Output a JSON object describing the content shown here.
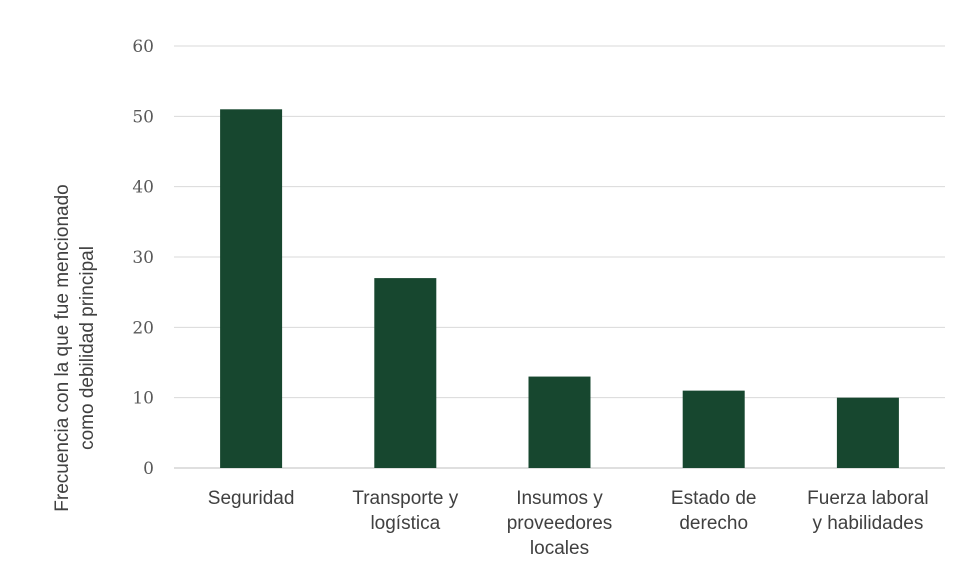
{
  "chart_data": {
    "type": "bar",
    "categories": [
      [
        "Seguridad"
      ],
      [
        "Transporte y",
        "logística"
      ],
      [
        "Insumos y",
        "proveedores",
        "locales"
      ],
      [
        "Estado de",
        "derecho"
      ],
      [
        "Fuerza laboral",
        "y habilidades"
      ]
    ],
    "values": [
      51,
      27,
      13,
      11,
      10
    ],
    "ylabel": [
      "Frecuencia con la que fue mencionado",
      "como debilidad principal"
    ],
    "xlabel": "",
    "title": "",
    "ylim": [
      0,
      60
    ],
    "yticks": [
      0,
      10,
      20,
      30,
      40,
      50,
      60
    ],
    "grid": true,
    "legend": "none",
    "bar_color": "#17472f"
  }
}
